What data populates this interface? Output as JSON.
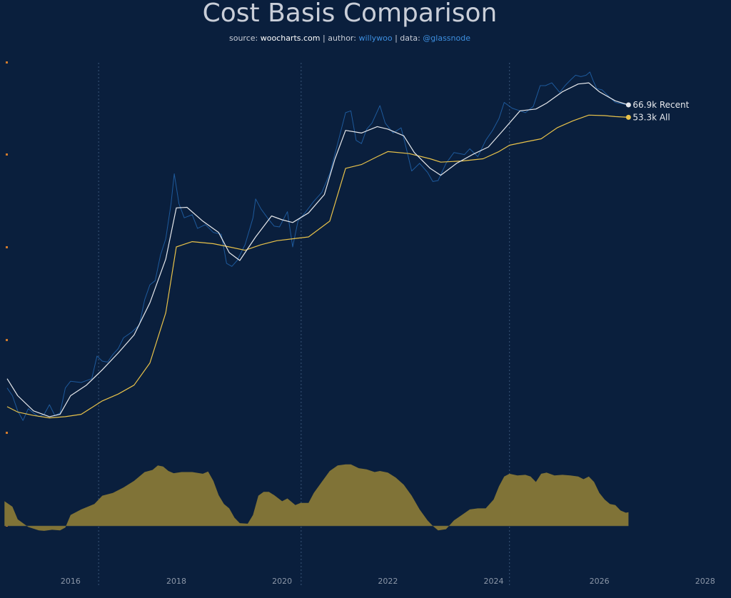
{
  "header": {
    "title": "Cost Basis Comparison",
    "subtitle": {
      "source_prefix": "source: ",
      "source": "woocharts.com",
      "sep1": " | author: ",
      "author": "willywoo",
      "sep2": " | data: ",
      "data_source": "@glassnode"
    }
  },
  "colors": {
    "background": "#0a1f3d",
    "price": "#1e5a9c",
    "recent": "#e6e8ec",
    "all": "#e8c24a",
    "oscillator": "#807337",
    "marker": "#d07a2c",
    "vline": "#3a5578"
  },
  "chart_data": {
    "type": "line",
    "xlabel": "",
    "ylabel": "",
    "scale": "log",
    "xlim": [
      2014.8,
      2028.3
    ],
    "x_ticks": [
      "2016",
      "2018",
      "2020",
      "2022",
      "2024",
      "2026",
      "2028"
    ],
    "x_tick_values": [
      2016,
      2018,
      2020,
      2022,
      2024,
      2026,
      2028
    ],
    "halving_lines": [
      2016.53,
      2020.36,
      2024.3
    ],
    "series": [
      {
        "name": "Recent",
        "end_label": "66.9k Recent",
        "points": [
          [
            2014.8,
            450
          ],
          [
            2015.0,
            330
          ],
          [
            2015.3,
            250
          ],
          [
            2015.6,
            225
          ],
          [
            2015.8,
            235
          ],
          [
            2016.0,
            330
          ],
          [
            2016.3,
            400
          ],
          [
            2016.6,
            530
          ],
          [
            2016.9,
            720
          ],
          [
            2017.2,
            1000
          ],
          [
            2017.5,
            1800
          ],
          [
            2017.8,
            4000
          ],
          [
            2018.0,
            10200
          ],
          [
            2018.2,
            10300
          ],
          [
            2018.5,
            8000
          ],
          [
            2018.8,
            6500
          ],
          [
            2019.0,
            4500
          ],
          [
            2019.2,
            3900
          ],
          [
            2019.5,
            6000
          ],
          [
            2019.8,
            8800
          ],
          [
            2020.0,
            8200
          ],
          [
            2020.2,
            7800
          ],
          [
            2020.5,
            9300
          ],
          [
            2020.8,
            13000
          ],
          [
            2021.0,
            25000
          ],
          [
            2021.2,
            42000
          ],
          [
            2021.5,
            40000
          ],
          [
            2021.8,
            45000
          ],
          [
            2022.0,
            43000
          ],
          [
            2022.3,
            38000
          ],
          [
            2022.5,
            28000
          ],
          [
            2022.8,
            21000
          ],
          [
            2023.0,
            18500
          ],
          [
            2023.3,
            23000
          ],
          [
            2023.6,
            27000
          ],
          [
            2023.9,
            31000
          ],
          [
            2024.2,
            43000
          ],
          [
            2024.5,
            60000
          ],
          [
            2024.8,
            62000
          ],
          [
            2025.0,
            69000
          ],
          [
            2025.3,
            85000
          ],
          [
            2025.6,
            98000
          ],
          [
            2025.8,
            100000
          ],
          [
            2026.0,
            85000
          ],
          [
            2026.3,
            72000
          ],
          [
            2026.55,
            66900
          ]
        ]
      },
      {
        "name": "All",
        "end_label": "53.3k All",
        "points": [
          [
            2014.8,
            270
          ],
          [
            2015.0,
            245
          ],
          [
            2015.3,
            230
          ],
          [
            2015.6,
            220
          ],
          [
            2015.9,
            225
          ],
          [
            2016.2,
            235
          ],
          [
            2016.6,
            300
          ],
          [
            2016.9,
            340
          ],
          [
            2017.2,
            400
          ],
          [
            2017.5,
            600
          ],
          [
            2017.8,
            1500
          ],
          [
            2018.0,
            5000
          ],
          [
            2018.3,
            5500
          ],
          [
            2018.7,
            5300
          ],
          [
            2019.0,
            5000
          ],
          [
            2019.3,
            4700
          ],
          [
            2019.6,
            5200
          ],
          [
            2019.9,
            5600
          ],
          [
            2020.2,
            5800
          ],
          [
            2020.5,
            6000
          ],
          [
            2020.9,
            8000
          ],
          [
            2021.2,
            21000
          ],
          [
            2021.5,
            22500
          ],
          [
            2021.8,
            26000
          ],
          [
            2022.0,
            28500
          ],
          [
            2022.4,
            27500
          ],
          [
            2022.8,
            25000
          ],
          [
            2023.0,
            23500
          ],
          [
            2023.4,
            24000
          ],
          [
            2023.8,
            25000
          ],
          [
            2024.1,
            28500
          ],
          [
            2024.3,
            32000
          ],
          [
            2024.6,
            34000
          ],
          [
            2024.9,
            36000
          ],
          [
            2025.2,
            44000
          ],
          [
            2025.5,
            50000
          ],
          [
            2025.8,
            55500
          ],
          [
            2026.1,
            55000
          ],
          [
            2026.3,
            54000
          ],
          [
            2026.55,
            53300
          ]
        ]
      },
      {
        "name": "Price",
        "points": [
          [
            2014.8,
            380
          ],
          [
            2014.9,
            330
          ],
          [
            2015.0,
            250
          ],
          [
            2015.1,
            210
          ],
          [
            2015.2,
            260
          ],
          [
            2015.3,
            240
          ],
          [
            2015.4,
            225
          ],
          [
            2015.5,
            235
          ],
          [
            2015.6,
            280
          ],
          [
            2015.7,
            230
          ],
          [
            2015.8,
            240
          ],
          [
            2015.9,
            380
          ],
          [
            2016.0,
            430
          ],
          [
            2016.2,
            420
          ],
          [
            2016.4,
            450
          ],
          [
            2016.5,
            680
          ],
          [
            2016.6,
            620
          ],
          [
            2016.7,
            610
          ],
          [
            2016.8,
            700
          ],
          [
            2016.9,
            780
          ],
          [
            2017.0,
            950
          ],
          [
            2017.15,
            1050
          ],
          [
            2017.3,
            1200
          ],
          [
            2017.4,
            1900
          ],
          [
            2017.5,
            2500
          ],
          [
            2017.6,
            2700
          ],
          [
            2017.7,
            4300
          ],
          [
            2017.8,
            5800
          ],
          [
            2017.9,
            11000
          ],
          [
            2017.96,
            19000
          ],
          [
            2018.05,
            11000
          ],
          [
            2018.15,
            8500
          ],
          [
            2018.3,
            9000
          ],
          [
            2018.4,
            7000
          ],
          [
            2018.55,
            7500
          ],
          [
            2018.7,
            6500
          ],
          [
            2018.85,
            6300
          ],
          [
            2018.95,
            3700
          ],
          [
            2019.05,
            3500
          ],
          [
            2019.15,
            3900
          ],
          [
            2019.3,
            5200
          ],
          [
            2019.45,
            8500
          ],
          [
            2019.5,
            12000
          ],
          [
            2019.6,
            10000
          ],
          [
            2019.75,
            8200
          ],
          [
            2019.85,
            7300
          ],
          [
            2019.95,
            7200
          ],
          [
            2020.1,
            9500
          ],
          [
            2020.2,
            5000
          ],
          [
            2020.3,
            8000
          ],
          [
            2020.45,
            9500
          ],
          [
            2020.6,
            11500
          ],
          [
            2020.75,
            13500
          ],
          [
            2020.9,
            19000
          ],
          [
            2021.05,
            33000
          ],
          [
            2021.2,
            58000
          ],
          [
            2021.3,
            60000
          ],
          [
            2021.4,
            35000
          ],
          [
            2021.5,
            33000
          ],
          [
            2021.6,
            43000
          ],
          [
            2021.7,
            48000
          ],
          [
            2021.85,
            66000
          ],
          [
            2021.95,
            48000
          ],
          [
            2022.1,
            40000
          ],
          [
            2022.25,
            44000
          ],
          [
            2022.35,
            30000
          ],
          [
            2022.45,
            20000
          ],
          [
            2022.6,
            23000
          ],
          [
            2022.75,
            19500
          ],
          [
            2022.85,
            16500
          ],
          [
            2022.95,
            16800
          ],
          [
            2023.1,
            23000
          ],
          [
            2023.25,
            28000
          ],
          [
            2023.45,
            27000
          ],
          [
            2023.55,
            30000
          ],
          [
            2023.7,
            26000
          ],
          [
            2023.85,
            35000
          ],
          [
            2023.98,
            42000
          ],
          [
            2024.1,
            52000
          ],
          [
            2024.2,
            70000
          ],
          [
            2024.35,
            63000
          ],
          [
            2024.5,
            60000
          ],
          [
            2024.6,
            58000
          ],
          [
            2024.75,
            65000
          ],
          [
            2024.88,
            95000
          ],
          [
            2024.98,
            95000
          ],
          [
            2025.1,
            100000
          ],
          [
            2025.25,
            84000
          ],
          [
            2025.35,
            95000
          ],
          [
            2025.45,
            105000
          ],
          [
            2025.55,
            115000
          ],
          [
            2025.65,
            112000
          ],
          [
            2025.75,
            115000
          ],
          [
            2025.82,
            122000
          ],
          [
            2025.88,
            105000
          ],
          [
            2025.95,
            90000
          ],
          [
            2026.05,
            88000
          ],
          [
            2026.15,
            80000
          ],
          [
            2026.3,
            70000
          ],
          [
            2026.45,
            68000
          ],
          [
            2026.55,
            67000
          ]
        ]
      },
      {
        "name": "Oscillator",
        "points": [
          [
            2014.75,
            0.45
          ],
          [
            2014.9,
            0.35
          ],
          [
            2015.0,
            0.12
          ],
          [
            2015.2,
            -0.02
          ],
          [
            2015.4,
            -0.08
          ],
          [
            2015.5,
            -0.09
          ],
          [
            2015.65,
            -0.07
          ],
          [
            2015.8,
            -0.08
          ],
          [
            2015.9,
            -0.03
          ],
          [
            2016.0,
            0.2
          ],
          [
            2016.2,
            0.3
          ],
          [
            2016.45,
            0.4
          ],
          [
            2016.6,
            0.55
          ],
          [
            2016.8,
            0.6
          ],
          [
            2017.0,
            0.7
          ],
          [
            2017.2,
            0.82
          ],
          [
            2017.4,
            0.98
          ],
          [
            2017.55,
            1.02
          ],
          [
            2017.65,
            1.1
          ],
          [
            2017.75,
            1.08
          ],
          [
            2017.85,
            1.0
          ],
          [
            2017.95,
            0.96
          ],
          [
            2018.1,
            0.98
          ],
          [
            2018.3,
            0.98
          ],
          [
            2018.5,
            0.95
          ],
          [
            2018.6,
            0.99
          ],
          [
            2018.7,
            0.82
          ],
          [
            2018.8,
            0.56
          ],
          [
            2018.9,
            0.4
          ],
          [
            2019.0,
            0.32
          ],
          [
            2019.1,
            0.15
          ],
          [
            2019.2,
            0.05
          ],
          [
            2019.35,
            0.04
          ],
          [
            2019.45,
            0.2
          ],
          [
            2019.55,
            0.55
          ],
          [
            2019.65,
            0.62
          ],
          [
            2019.75,
            0.62
          ],
          [
            2019.85,
            0.56
          ],
          [
            2020.0,
            0.45
          ],
          [
            2020.1,
            0.5
          ],
          [
            2020.25,
            0.38
          ],
          [
            2020.35,
            0.42
          ],
          [
            2020.5,
            0.42
          ],
          [
            2020.6,
            0.6
          ],
          [
            2020.75,
            0.8
          ],
          [
            2020.9,
            1.0
          ],
          [
            2021.05,
            1.1
          ],
          [
            2021.2,
            1.12
          ],
          [
            2021.3,
            1.12
          ],
          [
            2021.45,
            1.05
          ],
          [
            2021.6,
            1.03
          ],
          [
            2021.75,
            0.98
          ],
          [
            2021.85,
            1.0
          ],
          [
            2022.0,
            0.97
          ],
          [
            2022.15,
            0.88
          ],
          [
            2022.3,
            0.75
          ],
          [
            2022.45,
            0.55
          ],
          [
            2022.6,
            0.3
          ],
          [
            2022.75,
            0.1
          ],
          [
            2022.85,
            0.0
          ],
          [
            2022.95,
            -0.08
          ],
          [
            2023.1,
            -0.06
          ],
          [
            2023.25,
            0.1
          ],
          [
            2023.4,
            0.2
          ],
          [
            2023.55,
            0.3
          ],
          [
            2023.7,
            0.32
          ],
          [
            2023.85,
            0.32
          ],
          [
            2024.0,
            0.48
          ],
          [
            2024.1,
            0.72
          ],
          [
            2024.2,
            0.9
          ],
          [
            2024.3,
            0.95
          ],
          [
            2024.45,
            0.92
          ],
          [
            2024.6,
            0.93
          ],
          [
            2024.7,
            0.9
          ],
          [
            2024.8,
            0.8
          ],
          [
            2024.9,
            0.95
          ],
          [
            2025.0,
            0.97
          ],
          [
            2025.15,
            0.92
          ],
          [
            2025.3,
            0.93
          ],
          [
            2025.45,
            0.92
          ],
          [
            2025.6,
            0.9
          ],
          [
            2025.7,
            0.85
          ],
          [
            2025.8,
            0.9
          ],
          [
            2025.9,
            0.8
          ],
          [
            2026.0,
            0.6
          ],
          [
            2026.1,
            0.48
          ],
          [
            2026.2,
            0.4
          ],
          [
            2026.3,
            0.38
          ],
          [
            2026.4,
            0.28
          ],
          [
            2026.5,
            0.24
          ],
          [
            2026.55,
            0.25
          ]
        ]
      }
    ]
  }
}
